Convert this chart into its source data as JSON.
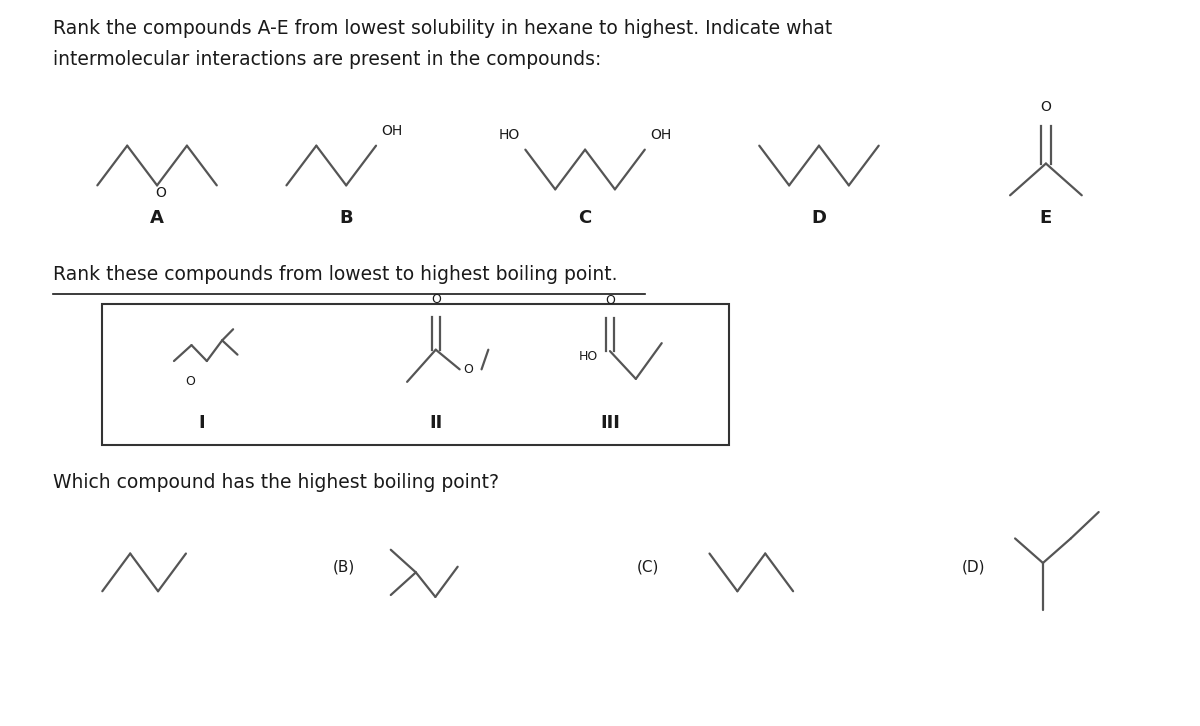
{
  "title1": "Rank the compounds A-E from lowest solubility in hexane to highest. Indicate what",
  "title2": "intermolecular interactions are present in the compounds:",
  "title3": "Rank these compounds from lowest to highest boiling point.",
  "title4": "Which compound has the highest boiling point?",
  "bg_color": "#ffffff",
  "text_color": "#1a1a1a",
  "line_color": "#555555",
  "font_size_title": 13.5,
  "font_size_label": 13,
  "font_size_chem": 10
}
